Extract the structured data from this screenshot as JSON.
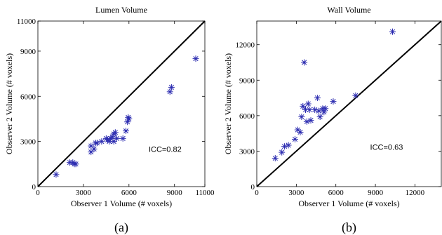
{
  "chart_data": [
    {
      "type": "scatter",
      "title": "Lumen Volume",
      "xlabel": "Observer 1 Volume (# voxels)",
      "ylabel": "Observer 2 Volume (# voxels)",
      "xlim": [
        0,
        11000
      ],
      "ylim": [
        0,
        11000
      ],
      "xticks": [
        "0",
        "3000",
        "6000",
        "9000",
        "11000"
      ],
      "xtick_values": [
        0,
        3000,
        6000,
        9000,
        11000
      ],
      "yticks": [
        "0",
        "3000",
        "6000",
        "9000",
        "11000"
      ],
      "ytick_values": [
        0,
        3000,
        6000,
        9000,
        11000
      ],
      "annotation": "ICC=0.82",
      "annotation_pos": [
        7300,
        2300
      ],
      "caption": "(a)",
      "marker_color": "#2b2bb0",
      "points": {
        "x": [
          1200,
          2100,
          2300,
          2400,
          2500,
          3500,
          3500,
          3700,
          3800,
          3900,
          4200,
          4500,
          4600,
          4700,
          4800,
          4900,
          5000,
          5000,
          5100,
          5200,
          5600,
          5800,
          5900,
          5950,
          6000,
          8700,
          8800,
          10400
        ],
        "y": [
          800,
          1600,
          1600,
          1500,
          1500,
          2300,
          2700,
          2500,
          2900,
          2900,
          3000,
          3200,
          3100,
          3000,
          3200,
          3300,
          3000,
          3500,
          3600,
          3200,
          3200,
          3700,
          4300,
          4600,
          4500,
          6300,
          6600,
          8500
        ]
      }
    },
    {
      "type": "scatter",
      "title": "Wall Volume",
      "xlabel": "Observer 1 Volume (# voxels)",
      "ylabel": "Observer 2 Volume (# voxels)",
      "xlim": [
        0,
        14000
      ],
      "ylim": [
        0,
        14000
      ],
      "xticks": [
        "0",
        "3000",
        "6000",
        "9000",
        "12000"
      ],
      "xtick_values": [
        0,
        3000,
        6000,
        9000,
        12000
      ],
      "yticks": [
        "0",
        "3000",
        "6000",
        "9000",
        "12000"
      ],
      "ytick_values": [
        0,
        3000,
        6000,
        9000,
        12000
      ],
      "annotation": "ICC=0.63",
      "annotation_pos": [
        8600,
        3100
      ],
      "caption": "(b)",
      "marker_color": "#2b2bb0",
      "points": {
        "x": [
          1400,
          1900,
          2100,
          2400,
          2900,
          3100,
          3300,
          3400,
          3500,
          3600,
          3700,
          3800,
          3900,
          4000,
          4100,
          4400,
          4600,
          4700,
          4800,
          5000,
          5100,
          5200,
          5800,
          7500,
          10300
        ],
        "y": [
          2400,
          2900,
          3400,
          3500,
          4000,
          4800,
          4600,
          5900,
          6800,
          10500,
          6500,
          5500,
          7000,
          6500,
          5600,
          6500,
          7500,
          6400,
          5900,
          6600,
          6300,
          6600,
          7200,
          7700,
          13100
        ]
      }
    }
  ]
}
